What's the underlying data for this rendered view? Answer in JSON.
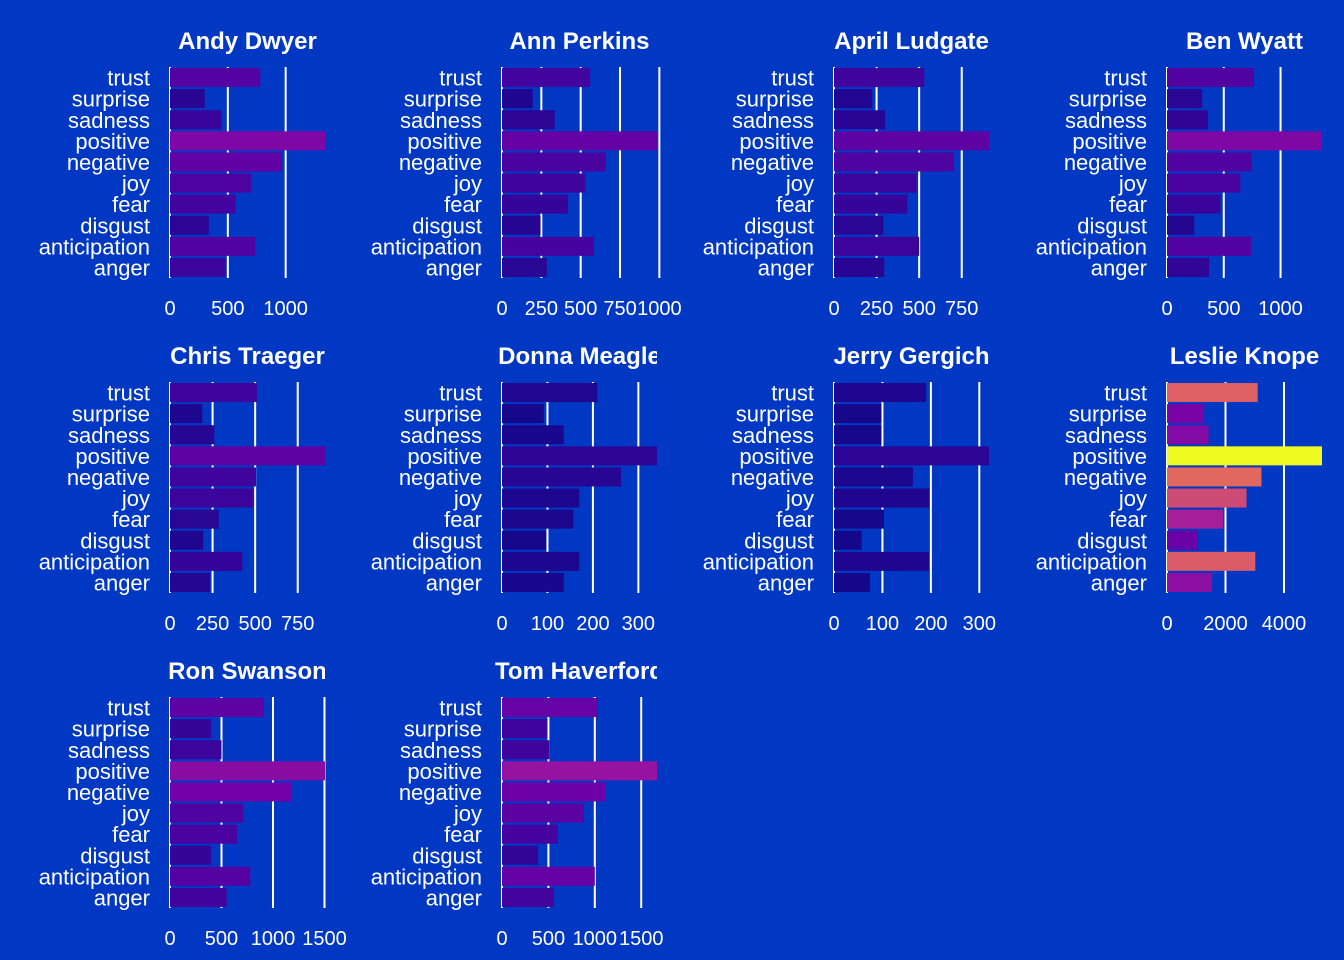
{
  "chart_data": {
    "type": "bar",
    "orientation": "horizontal",
    "layout": "faceted small multiples, 4 columns",
    "grid": "vertical major gridlines",
    "legend": "none",
    "color_scale": "plasma (by value, relative to the global maximum)",
    "categories": [
      "trust",
      "surprise",
      "sadness",
      "positive",
      "negative",
      "joy",
      "fear",
      "disgust",
      "anticipation",
      "anger"
    ],
    "panels": [
      {
        "title": "Andy Dwyer",
        "ticks": [
          "0",
          "500",
          "1000"
        ],
        "tick_values": [
          0,
          500,
          1000
        ],
        "xlim": [
          0,
          1340
        ],
        "values": [
          780,
          300,
          445,
          1340,
          965,
          700,
          565,
          335,
          735,
          480
        ]
      },
      {
        "title": "Ann Perkins",
        "ticks": [
          "0",
          "250",
          "500",
          "750",
          "1000"
        ],
        "tick_values": [
          0,
          250,
          500,
          750,
          1000
        ],
        "xlim": [
          0,
          985
        ],
        "values": [
          560,
          195,
          335,
          985,
          660,
          530,
          420,
          245,
          585,
          285
        ]
      },
      {
        "title": "April Ludgate",
        "ticks": [
          "0",
          "250",
          "500",
          "750"
        ],
        "tick_values": [
          0,
          250,
          500,
          750
        ],
        "xlim": [
          0,
          910
        ],
        "values": [
          530,
          225,
          300,
          910,
          705,
          485,
          430,
          290,
          500,
          295
        ]
      },
      {
        "title": "Ben Wyatt",
        "ticks": [
          "0",
          "500",
          "1000"
        ],
        "tick_values": [
          0,
          500,
          1000
        ],
        "xlim": [
          0,
          1365
        ],
        "values": [
          765,
          310,
          360,
          1365,
          745,
          645,
          470,
          240,
          740,
          370
        ]
      },
      {
        "title": "Chris Traeger",
        "ticks": [
          "0",
          "250",
          "500",
          "750"
        ],
        "tick_values": [
          0,
          250,
          500,
          750
        ],
        "xlim": [
          0,
          910
        ],
        "values": [
          510,
          190,
          260,
          910,
          505,
          490,
          285,
          195,
          425,
          235
        ]
      },
      {
        "title": "Donna Meagle",
        "ticks": [
          "0",
          "100",
          "200",
          "300"
        ],
        "tick_values": [
          0,
          100,
          200,
          300
        ],
        "xlim": [
          0,
          341
        ],
        "values": [
          210,
          92,
          136,
          341,
          262,
          170,
          157,
          97,
          170,
          136
        ]
      },
      {
        "title": "Jerry Gergich",
        "ticks": [
          "0",
          "100",
          "200",
          "300"
        ],
        "tick_values": [
          0,
          100,
          200,
          300
        ],
        "xlim": [
          0,
          320
        ],
        "values": [
          190,
          98,
          98,
          320,
          163,
          197,
          103,
          57,
          196,
          74
        ]
      },
      {
        "title": "Leslie Knope",
        "ticks": [
          "0",
          "2000",
          "4000"
        ],
        "tick_values": [
          0,
          2000,
          4000
        ],
        "xlim": [
          0,
          5300
        ],
        "values": [
          3100,
          1270,
          1420,
          5300,
          3230,
          2720,
          1920,
          1060,
          3020,
          1540
        ]
      },
      {
        "title": "Ron Swanson",
        "ticks": [
          "0",
          "500",
          "1000",
          "1500"
        ],
        "tick_values": [
          0,
          500,
          1000,
          1500
        ],
        "xlim": [
          0,
          1505
        ],
        "values": [
          910,
          400,
          500,
          1505,
          1175,
          710,
          650,
          400,
          780,
          550
        ]
      },
      {
        "title": "Tom Haverford",
        "ticks": [
          "0",
          "500",
          "1000",
          "1500"
        ],
        "tick_values": [
          0,
          500,
          1000,
          1500
        ],
        "xlim": [
          0,
          1670
        ],
        "values": [
          1030,
          490,
          510,
          1670,
          1115,
          880,
          600,
          390,
          1000,
          560
        ]
      }
    ],
    "colors": {
      "background": "#0138c3",
      "text": "#ffffff",
      "gridline": "#ffffff",
      "plasma_stops": [
        "#0d0887",
        "#46039f",
        "#7201a8",
        "#9c179e",
        "#bd3786",
        "#d8576b",
        "#ed7953",
        "#fb9f3a",
        "#fdca26",
        "#f0f921"
      ]
    }
  }
}
